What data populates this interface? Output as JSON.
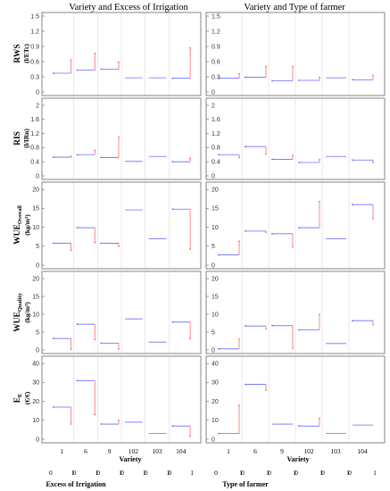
{
  "columns": [
    {
      "title": "Variety and Excess of Irrigation"
    },
    {
      "title": "Variety and Type of farmer"
    }
  ],
  "rows": [
    {
      "label": "RWS",
      "unit": "(l/ETc)",
      "ylim": [
        0,
        1.5
      ],
      "yticks": [
        "0",
        "0.3",
        "0.6",
        "0.9",
        "1.2",
        "1.5"
      ]
    },
    {
      "label": "RIS",
      "unit": "(l/IRn)",
      "ylim": [
        0,
        2.1
      ],
      "yticks": [
        "0",
        "0.4",
        "0.8",
        "1.2",
        "1.6",
        "2"
      ]
    },
    {
      "label": "WUE",
      "sub": "Overall",
      "unit": "(kg/m³)",
      "ylim": [
        0,
        21
      ],
      "yticks": [
        "0",
        "5",
        "10",
        "15",
        "20"
      ]
    },
    {
      "label": "WUE",
      "sub": "Quality",
      "unit": "(kg/m³)",
      "ylim": [
        0,
        21
      ],
      "yticks": [
        "0",
        "5",
        "10",
        "15",
        "20"
      ]
    },
    {
      "label": "E",
      "sub": "E",
      "unit": "(€/€)",
      "ylim": [
        0,
        42
      ],
      "yticks": [
        "0",
        "10",
        "20",
        "30",
        "40"
      ]
    }
  ],
  "x_axis": {
    "label": "Variety",
    "categories": [
      "1",
      "6",
      "9",
      "102",
      "103",
      "104"
    ]
  },
  "factors": [
    {
      "label": "Excess of Irrigation",
      "levels": [
        "0",
        "1",
        "0",
        "1",
        "0",
        "1",
        "0",
        "1",
        "0",
        "1",
        "0",
        "1"
      ]
    },
    {
      "label": "Type of farmer",
      "levels": [
        "0",
        "1",
        "0",
        "1",
        "0",
        "1",
        "0",
        "1",
        "0",
        "1",
        "0",
        "1"
      ]
    }
  ],
  "chart_data": [
    {
      "type": "line",
      "title": "Variety and Excess of Irrigation",
      "ylabel": "RWS (l/ETc)",
      "categories": [
        "1",
        "6",
        "9",
        "102",
        "103",
        "104"
      ],
      "ylim": [
        0,
        1.5
      ],
      "series": [
        {
          "values": [
            [
              0.37,
              0.63
            ],
            [
              0.43,
              0.76
            ],
            [
              0.45,
              0.59
            ],
            [
              0.28,
              0.28
            ],
            [
              0.28,
              0.28
            ],
            [
              0.27,
              0.87
            ]
          ]
        }
      ]
    },
    {
      "type": "line",
      "title": "Variety and Excess of Irrigation",
      "ylabel": "RIS (l/IRn)",
      "categories": [
        "1",
        "6",
        "9",
        "102",
        "103",
        "104"
      ],
      "ylim": [
        0,
        2.1
      ],
      "series": [
        {
          "values": [
            [
              0.53,
              0.56
            ],
            [
              0.6,
              0.72
            ],
            [
              0.52,
              1.1
            ],
            [
              0.41,
              0.41
            ],
            [
              0.55,
              0.55
            ],
            [
              0.4,
              0.5
            ]
          ]
        }
      ]
    },
    {
      "type": "line",
      "title": "Variety and Excess of Irrigation",
      "ylabel": "WUE Overall (kg/m³)",
      "categories": [
        "1",
        "6",
        "9",
        "102",
        "103",
        "104"
      ],
      "ylim": [
        0,
        21
      ],
      "series": [
        {
          "values": [
            [
              5.8,
              3.9
            ],
            [
              9.9,
              6.0
            ],
            [
              5.8,
              5.0
            ],
            [
              14.6,
              14.6
            ],
            [
              7.0,
              7.0
            ],
            [
              14.8,
              4.2
            ]
          ]
        }
      ]
    },
    {
      "type": "line",
      "title": "Variety and Excess of Irrigation",
      "ylabel": "WUE Quality (kg/m³)",
      "categories": [
        "1",
        "6",
        "9",
        "102",
        "103",
        "104"
      ],
      "ylim": [
        0,
        21
      ],
      "series": [
        {
          "values": [
            [
              3.2,
              0.2
            ],
            [
              7.2,
              2.9
            ],
            [
              1.9,
              0.3
            ],
            [
              8.7,
              8.7
            ],
            [
              2.2,
              2.2
            ],
            [
              7.8,
              3.2
            ]
          ]
        }
      ]
    },
    {
      "type": "line",
      "title": "Variety and Excess of Irrigation",
      "ylabel": "E E (€/€)",
      "categories": [
        "1",
        "6",
        "9",
        "102",
        "103",
        "104"
      ],
      "ylim": [
        0,
        42
      ],
      "series": [
        {
          "values": [
            [
              17.0,
              8.0
            ],
            [
              31.0,
              13.0
            ],
            [
              8.0,
              10.0
            ],
            [
              9.0,
              9.0
            ],
            [
              3.0,
              3.0
            ],
            [
              7.0,
              1.5
            ]
          ]
        }
      ]
    },
    {
      "type": "line",
      "title": "Variety and Type of farmer",
      "ylabel": "RWS (l/ETc)",
      "categories": [
        "1",
        "6",
        "9",
        "102",
        "103",
        "104"
      ],
      "ylim": [
        0,
        1.5
      ],
      "series": [
        {
          "values": [
            [
              0.27,
              0.36
            ],
            [
              0.29,
              0.5
            ],
            [
              0.22,
              0.5
            ],
            [
              0.23,
              0.29
            ],
            [
              0.28,
              0.28
            ],
            [
              0.24,
              0.33
            ]
          ]
        }
      ]
    },
    {
      "type": "line",
      "title": "Variety and Type of farmer",
      "ylabel": "RIS (l/IRn)",
      "categories": [
        "1",
        "6",
        "9",
        "102",
        "103",
        "104"
      ],
      "ylim": [
        0,
        2.1
      ],
      "series": [
        {
          "values": [
            [
              0.6,
              0.52
            ],
            [
              0.83,
              0.62
            ],
            [
              0.47,
              0.58
            ],
            [
              0.38,
              0.46
            ],
            [
              0.55,
              0.55
            ],
            [
              0.45,
              0.38
            ]
          ]
        }
      ]
    },
    {
      "type": "line",
      "title": "Variety and Type of farmer",
      "ylabel": "WUE Overall (kg/m³)",
      "categories": [
        "1",
        "6",
        "9",
        "102",
        "103",
        "104"
      ],
      "ylim": [
        0,
        21
      ],
      "series": [
        {
          "values": [
            [
              2.7,
              6.3
            ],
            [
              9.0,
              8.7
            ],
            [
              8.3,
              4.8
            ],
            [
              9.9,
              16.8
            ],
            [
              7.0,
              7.0
            ],
            [
              16.0,
              12.3
            ]
          ]
        }
      ]
    },
    {
      "type": "line",
      "title": "Variety and Type of farmer",
      "ylabel": "WUE Quality (kg/m³)",
      "categories": [
        "1",
        "6",
        "9",
        "102",
        "103",
        "104"
      ],
      "ylim": [
        0,
        21
      ],
      "series": [
        {
          "values": [
            [
              0.3,
              3.0
            ],
            [
              6.7,
              5.9
            ],
            [
              6.8,
              0.5
            ],
            [
              5.6,
              9.9
            ],
            [
              1.8,
              1.8
            ],
            [
              8.2,
              7.1
            ]
          ]
        }
      ]
    },
    {
      "type": "line",
      "title": "Variety and Type of farmer",
      "ylabel": "E E (€/€)",
      "categories": [
        "1",
        "6",
        "9",
        "102",
        "103",
        "104"
      ],
      "ylim": [
        0,
        42
      ],
      "series": [
        {
          "values": [
            [
              3.0,
              18.0
            ],
            [
              29.0,
              26.0
            ],
            [
              8.0,
              8.0
            ],
            [
              7.0,
              11.0
            ],
            [
              3.0,
              3.0
            ],
            [
              7.5,
              7.5
            ]
          ]
        }
      ]
    }
  ],
  "colors": {
    "level_segment": "#6a6aff",
    "jump_segment": "#ff6a6a",
    "frame": "#666666",
    "grid": "#d6d6d6"
  }
}
